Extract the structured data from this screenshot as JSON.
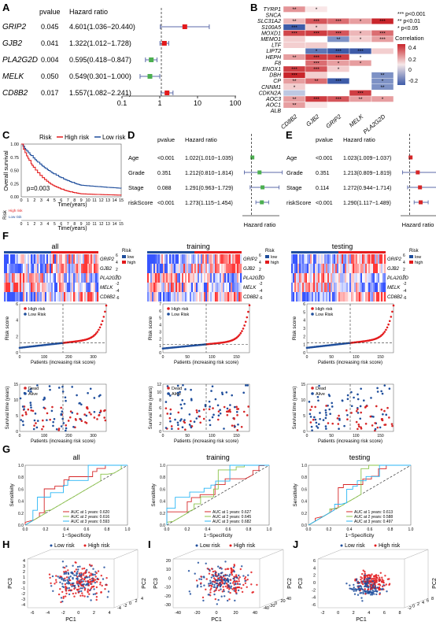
{
  "colors": {
    "high_risk": "#e31a1c",
    "low_risk": "#1f4e9c",
    "heat_high": "#d7191c",
    "heat_low": "#2c5aa0",
    "point_green": "#4caf50",
    "point_red": "#d62728",
    "roc_1y": "#d62728",
    "roc_2y": "#8bc34a",
    "roc_3y": "#29b6f6"
  },
  "panels": {
    "A": {
      "letter": "A",
      "header_pvalue": "pvalue",
      "header_hr": "Hazard ratio",
      "rows": [
        {
          "gene": "GRIP2",
          "pvalue": "0.045",
          "hr_text": "4.601(1.036−20.440)",
          "hr": 4.601,
          "lo": 1.036,
          "hi": 20.44,
          "color": "#e31a1c"
        },
        {
          "gene": "GJB2",
          "pvalue": "0.041",
          "hr_text": "1.322(1.012−1.728)",
          "hr": 1.322,
          "lo": 1.012,
          "hi": 1.728,
          "color": "#e31a1c"
        },
        {
          "gene": "PLA2G2D",
          "pvalue": "0.004",
          "hr_text": "0.595(0.418−0.847)",
          "hr": 0.595,
          "lo": 0.418,
          "hi": 0.847,
          "color": "#4caf50"
        },
        {
          "gene": "MELK",
          "pvalue": "0.050",
          "hr_text": "0.549(0.301−1.000)",
          "hr": 0.549,
          "lo": 0.301,
          "hi": 1.0,
          "color": "#4caf50"
        },
        {
          "gene": "CD8B2",
          "pvalue": "0.017",
          "hr_text": "1.557(1.082−2.241)",
          "hr": 1.557,
          "lo": 1.082,
          "hi": 2.241,
          "color": "#e31a1c"
        }
      ],
      "x_ticks": [
        "0.1",
        "1",
        "10",
        "100"
      ]
    },
    "B": {
      "letter": "B",
      "rows": [
        "TYRP1",
        "SNCA",
        "SLC31A2",
        "S100A5",
        "MOXD1",
        "MEMO1",
        "LTF",
        "LIPT2",
        "HEPH",
        "F8",
        "ENOX1",
        "DBH",
        "CP",
        "CNNM1",
        "CDKN2A",
        "AOC3",
        "AOC1",
        "ALB"
      ],
      "cols": [
        "CD8B2",
        "GJB2",
        "GRIP2",
        "MELK",
        "PLA2G2D"
      ],
      "legend_sig": [
        "*** p<0.001",
        "** p<0.01",
        "* p<0.05"
      ],
      "legend_title": "Correlation",
      "legend_ticks": [
        "0.4",
        "0.2",
        "0",
        "-0.2"
      ],
      "cells": [
        [
          0.22,
          0.05,
          0.0,
          0.0,
          0.0
        ],
        [
          0.0,
          0.0,
          0.0,
          0.0,
          0.0
        ],
        [
          0.15,
          0.35,
          0.3,
          0.2,
          0.45
        ],
        [
          -0.3,
          0.1,
          0.0,
          0.0,
          0.0
        ],
        [
          0.38,
          0.4,
          0.35,
          0.15,
          0.3
        ],
        [
          0.1,
          0.0,
          -0.2,
          0.1,
          0.2
        ],
        [
          0.1,
          0.1,
          0.0,
          0.0,
          0.0
        ],
        [
          0.0,
          -0.25,
          -0.3,
          -0.3,
          0.1
        ],
        [
          0.2,
          0.4,
          0.4,
          0.0,
          0.0
        ],
        [
          0.0,
          0.3,
          0.2,
          0.2,
          0.0
        ],
        [
          0.4,
          0.35,
          0.1,
          0.0,
          0.0
        ],
        [
          0.45,
          0.1,
          0.0,
          0.0,
          -0.2
        ],
        [
          0.2,
          0.3,
          -0.3,
          0.0,
          -0.2
        ],
        [
          0.1,
          0.0,
          0.0,
          0.0,
          -0.2
        ],
        [
          -0.1,
          0.0,
          0.0,
          0.4,
          0.0
        ],
        [
          0.2,
          0.4,
          0.35,
          0.2,
          0.2
        ],
        [
          0.2,
          0.05,
          0.0,
          0.0,
          0.0
        ],
        [
          0.0,
          0.0,
          0.0,
          0.0,
          0.0
        ]
      ],
      "stars": [
        [
          "**",
          "*",
          "",
          "",
          ""
        ],
        [
          "",
          "",
          "",
          "",
          ""
        ],
        [
          "**",
          "***",
          "***",
          "*",
          "***"
        ],
        [
          "***",
          "*",
          "",
          "",
          ""
        ],
        [
          "***",
          "***",
          "***",
          "*",
          "***"
        ],
        [
          "",
          "",
          "**",
          "*",
          "***"
        ],
        [
          "",
          "",
          "",
          "",
          ""
        ],
        [
          "",
          "*",
          "***",
          "***",
          ""
        ],
        [
          "**",
          "***",
          "***",
          "*",
          ""
        ],
        [
          "",
          "***",
          "*",
          "*",
          ""
        ],
        [
          "***",
          "***",
          "*",
          "",
          ""
        ],
        [
          "***",
          "",
          "",
          "",
          "**"
        ],
        [
          "**",
          "**",
          "***",
          "",
          "*"
        ],
        [
          "*",
          "",
          "",
          "",
          "**"
        ],
        [
          "",
          "",
          "",
          "***",
          ""
        ],
        [
          "**",
          "***",
          "***",
          "**",
          "*"
        ],
        [
          "**",
          "",
          "",
          "",
          ""
        ],
        [
          "",
          "",
          "",
          "",
          ""
        ]
      ]
    },
    "C": {
      "letter": "C",
      "legend_label": "Risk",
      "legend_high": "High risk",
      "legend_low": "Low risk",
      "ylabel": "Overall survival",
      "xlabel": "Time(years)",
      "pvalue": "p=0.003",
      "y_ticks": [
        "1.00",
        "0.75",
        "0.50",
        "0.25",
        "0.00"
      ],
      "x_ticks": [
        "0",
        "1",
        "2",
        "3",
        "4",
        "5",
        "6",
        "7",
        "8",
        "9",
        "10",
        "11",
        "12",
        "13",
        "14",
        "15"
      ],
      "table_label": "Risk",
      "table_high": "High risk",
      "table_low": "Low risk",
      "table_xlabel": "Time(years)"
    },
    "D": {
      "letter": "D",
      "header_pvalue": "pvalue",
      "header_hr": "Hazard ratio",
      "xlabel": "Hazard ratio",
      "rows": [
        {
          "label": "Age",
          "pvalue": "<0.001",
          "hr_text": "1.022(1.010−1.035)",
          "hr": 1.022,
          "lo": 1.01,
          "hi": 1.035,
          "color": "#4caf50"
        },
        {
          "label": "Grade",
          "pvalue": "0.351",
          "hr_text": "1.212(0.810−1.814)",
          "hr": 1.212,
          "lo": 0.81,
          "hi": 1.814,
          "color": "#4caf50"
        },
        {
          "label": "Stage",
          "pvalue": "0.088",
          "hr_text": "1.291(0.963−1.729)",
          "hr": 1.291,
          "lo": 0.963,
          "hi": 1.729,
          "color": "#4caf50"
        },
        {
          "label": "riskScore",
          "pvalue": "<0.001",
          "hr_text": "1.273(1.115−1.454)",
          "hr": 1.273,
          "lo": 1.115,
          "hi": 1.454,
          "color": "#4caf50"
        }
      ]
    },
    "E": {
      "letter": "E",
      "header_pvalue": "pvalue",
      "header_hr": "Hazard ratio",
      "xlabel": "Hazard ratio",
      "rows": [
        {
          "label": "Age",
          "pvalue": "<0.001",
          "hr_text": "1.023(1.009−1.037)",
          "hr": 1.023,
          "lo": 1.009,
          "hi": 1.037,
          "color": "#d62728"
        },
        {
          "label": "Grade",
          "pvalue": "0.351",
          "hr_text": "1.213(0.809−1.819)",
          "hr": 1.213,
          "lo": 0.809,
          "hi": 1.819,
          "color": "#d62728"
        },
        {
          "label": "Stage",
          "pvalue": "0.114",
          "hr_text": "1.272(0.944−1.714)",
          "hr": 1.272,
          "lo": 0.944,
          "hi": 1.714,
          "color": "#d62728"
        },
        {
          "label": "riskScore",
          "pvalue": "<0.001",
          "hr_text": "1.290(1.117−1.489)",
          "hr": 1.29,
          "lo": 1.117,
          "hi": 1.489,
          "color": "#d62728"
        }
      ]
    },
    "F": {
      "letter": "F",
      "groups": [
        {
          "title": "all",
          "n": 374,
          "cut": 190,
          "score_max": 6,
          "time_max": 15,
          "score_ticks": [
            "0",
            "2",
            "4",
            "6"
          ],
          "time_ticks": [
            "0",
            "5",
            "10",
            "15"
          ],
          "x_ticks": [
            "0",
            "100",
            "200",
            "300"
          ]
        },
        {
          "title": "training",
          "n": 187,
          "cut": 95,
          "score_max": 7,
          "time_max": 12,
          "score_ticks": [
            "0",
            "1",
            "2",
            "3",
            "4",
            "5",
            "6",
            "7"
          ],
          "time_ticks": [
            "0",
            "2",
            "4",
            "6",
            "8",
            "10",
            "12"
          ],
          "x_ticks": [
            "0",
            "50",
            "100",
            "150"
          ]
        },
        {
          "title": "testing",
          "n": 187,
          "cut": 95,
          "score_max": 6,
          "time_max": 15,
          "score_ticks": [
            "0",
            "1",
            "2",
            "3",
            "4",
            "5",
            "6"
          ],
          "time_ticks": [
            "0",
            "5",
            "10",
            "15"
          ],
          "x_ticks": [
            "0",
            "50",
            "100",
            "150"
          ]
        }
      ],
      "genes": [
        "GRIP2",
        "GJB2",
        "PLA2G2D",
        "MELK",
        "CD8B2"
      ],
      "heat_legend_title": "Risk",
      "heat_legend_low": "low",
      "heat_legend_high": "high",
      "heat_scale": [
        "6",
        "4",
        "2",
        "0",
        "-2",
        "-4",
        "-6"
      ],
      "risk_ylabel": "Risk score",
      "risk_xlabel": "Patients (increasing risk score)",
      "risk_legend_high": "High risk",
      "risk_legend_low": "Low Risk",
      "surv_ylabel": "Survival time (years)",
      "surv_xlabel": "Patients (increasing risk score)",
      "surv_legend_dead": "Dead",
      "surv_legend_alive": "Alive"
    },
    "G": {
      "letter": "G",
      "xlabel": "1−Specificity",
      "ylabel": "Sensitivity",
      "ticks": [
        "0.0",
        "0.2",
        "0.4",
        "0.6",
        "0.8",
        "1.0"
      ],
      "plots": [
        {
          "title": "all",
          "auc": [
            "AUC at 1 years: 0.620",
            "AUC at 2 years: 0.616",
            "AUC at 3 years: 0.593"
          ]
        },
        {
          "title": "training",
          "auc": [
            "AUC at 1 years: 0.627",
            "AUC at 2 years: 0.645",
            "AUC at 3 years: 0.682"
          ]
        },
        {
          "title": "testing",
          "auc": [
            "AUC at 1 years: 0.613",
            "AUC at 2 years: 0.588",
            "AUC at 3 years: 0.497"
          ]
        }
      ]
    },
    "PCA": [
      {
        "letter": "H",
        "legend_low": "Low risk",
        "legend_high": "High risk",
        "pc1": "PC1",
        "pc2": "PC2",
        "pc3": "PC3",
        "pc1_ticks": [
          "-6",
          "-4",
          "-2",
          "0",
          "2",
          "4"
        ],
        "pc3_ticks": [
          "-4",
          "-3",
          "-2",
          "-1",
          "0",
          "1",
          "2",
          "3",
          "4"
        ],
        "pc2_ticks": [
          "-4",
          "-2",
          "0",
          "2",
          "4"
        ]
      },
      {
        "letter": "I",
        "legend_low": "Low risk",
        "legend_high": "High risk",
        "pc1": "PC1",
        "pc2": "PC2",
        "pc3": "PC3",
        "pc1_ticks": [
          "-40",
          "-20",
          "0",
          "20",
          "40"
        ],
        "pc3_ticks": [
          "-30",
          "-20",
          "-10",
          "0",
          "10",
          "20"
        ],
        "pc2_ticks": [
          "-40",
          "-20",
          "0",
          "20",
          "40"
        ]
      },
      {
        "letter": "J",
        "legend_low": "Low risk",
        "legend_high": "High risk",
        "pc1": "PC1",
        "pc2": "PC2",
        "pc3": "PC3",
        "pc1_ticks": [
          "-2",
          "0",
          "2",
          "4",
          "6",
          "8"
        ],
        "pc3_ticks": [
          "-6",
          "-4",
          "-2",
          "0",
          "2",
          "4",
          "6"
        ],
        "pc2_ticks": [
          "-2",
          "0",
          "2",
          "4",
          "6",
          "8"
        ]
      }
    ]
  }
}
